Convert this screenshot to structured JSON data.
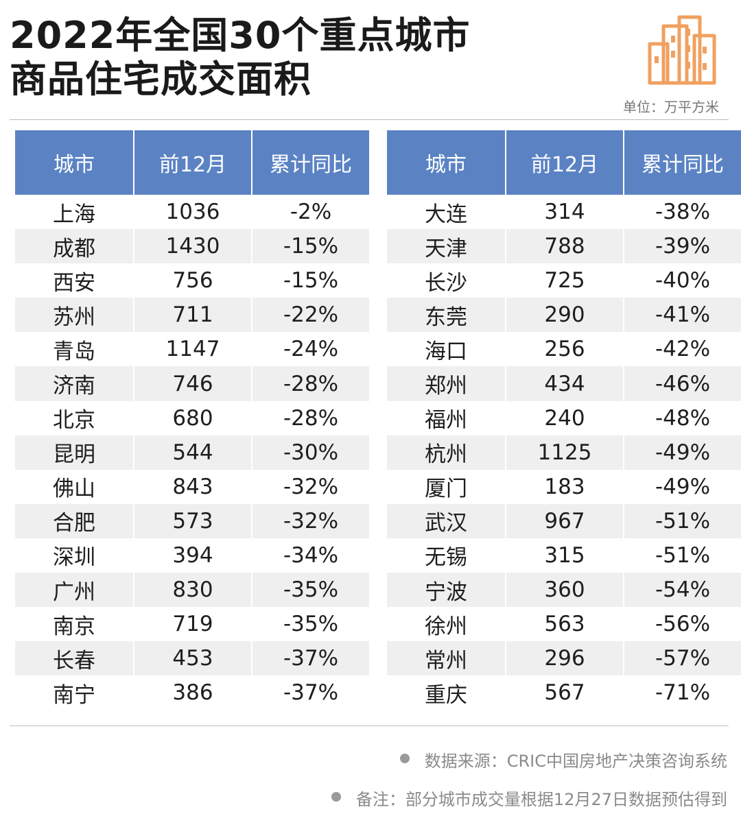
{
  "title": {
    "line1": "2022年全国30个重点城市",
    "line2": "商品住宅成交面积"
  },
  "unit": "单位：万平方米",
  "headers": [
    "城市",
    "前12月",
    "累计同比"
  ],
  "left_table": [
    [
      "上海",
      "1036",
      "-2%"
    ],
    [
      "成都",
      "1430",
      "-15%"
    ],
    [
      "西安",
      "756",
      "-15%"
    ],
    [
      "苏州",
      "711",
      "-22%"
    ],
    [
      "青岛",
      "1147",
      "-24%"
    ],
    [
      "济南",
      "746",
      "-28%"
    ],
    [
      "北京",
      "680",
      "-28%"
    ],
    [
      "昆明",
      "544",
      "-30%"
    ],
    [
      "佛山",
      "843",
      "-32%"
    ],
    [
      "合肥",
      "573",
      "-32%"
    ],
    [
      "深圳",
      "394",
      "-34%"
    ],
    [
      "广州",
      "830",
      "-35%"
    ],
    [
      "南京",
      "719",
      "-35%"
    ],
    [
      "长春",
      "453",
      "-37%"
    ],
    [
      "南宁",
      "386",
      "-37%"
    ]
  ],
  "right_table": [
    [
      "大连",
      "314",
      "-38%"
    ],
    [
      "天津",
      "788",
      "-39%"
    ],
    [
      "长沙",
      "725",
      "-40%"
    ],
    [
      "东莞",
      "290",
      "-41%"
    ],
    [
      "海口",
      "256",
      "-42%"
    ],
    [
      "郑州",
      "434",
      "-46%"
    ],
    [
      "福州",
      "240",
      "-48%"
    ],
    [
      "杭州",
      "1125",
      "-49%"
    ],
    [
      "厦门",
      "183",
      "-49%"
    ],
    [
      "武汉",
      "967",
      "-51%"
    ],
    [
      "无锡",
      "315",
      "-51%"
    ],
    [
      "宁波",
      "360",
      "-54%"
    ],
    [
      "徐州",
      "563",
      "-56%"
    ],
    [
      "常州",
      "296",
      "-57%"
    ],
    [
      "重庆",
      "567",
      "-71%"
    ]
  ],
  "notes": {
    "source": "数据来源：CRIC中国房地产决策咨询系统",
    "remark": "备注：部分城市成交量根据12月27日数据预估得到"
  },
  "colors": {
    "header_bg": "#5b83c4",
    "stripe_bg": "#efefef",
    "logo_orange": "#f0a060"
  },
  "icons": {
    "logo": "buildings-icon",
    "bullet": "bullet-dot-icon"
  }
}
